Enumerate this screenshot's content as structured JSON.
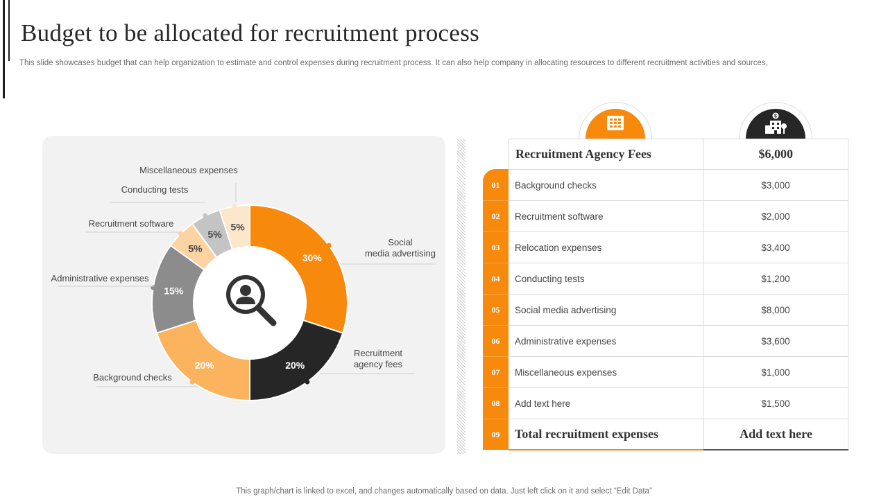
{
  "header": {
    "title": "Budget to be allocated for recruitment process",
    "subtitle": "This slide showcases budget that can help organization to estimate and control expenses during recruitment process. It can also help company in allocating resources to different recruitment activities and sources,"
  },
  "colors": {
    "accent": "#f7890c",
    "dark": "#262626",
    "light_orange": "#fbb35e",
    "peach": "#fdd3a4",
    "cream": "#fde7cc",
    "grey": "#8c8c8c",
    "light_grey": "#c4c4c4"
  },
  "chart_data": {
    "type": "pie",
    "style": "donut",
    "slices": [
      {
        "label": "Social\nmedia advertising",
        "value": 30,
        "pct_label": "30%",
        "color": "#f7890c",
        "text_color": "#ffffff"
      },
      {
        "label": "Recruitment\nagency fees",
        "value": 20,
        "pct_label": "20%",
        "color": "#262626",
        "text_color": "#ffffff"
      },
      {
        "label": "Background checks",
        "value": 20,
        "pct_label": "20%",
        "color": "#fbb35e",
        "text_color": "#ffffff"
      },
      {
        "label": "Administrative expenses",
        "value": 15,
        "pct_label": "15%",
        "color": "#8c8c8c",
        "text_color": "#ffffff"
      },
      {
        "label": "Recruitment software",
        "value": 5,
        "pct_label": "5%",
        "color": "#fdd3a4",
        "text_color": "#444444"
      },
      {
        "label": "Conducting tests",
        "value": 5,
        "pct_label": "5%",
        "color": "#c4c4c4",
        "text_color": "#444444"
      },
      {
        "label": "Miscellaneous expenses",
        "value": 5,
        "pct_label": "5%",
        "color": "#fde7cc",
        "text_color": "#444444"
      }
    ],
    "center_icon": "search-user-icon"
  },
  "table": {
    "header_name": "Recruitment Agency Fees",
    "header_value": "$6,000",
    "header_icons": [
      "building-icon",
      "office-icon"
    ],
    "rows": [
      {
        "num": "01",
        "name": "Background checks",
        "value": "$3,000"
      },
      {
        "num": "02",
        "name": "Recruitment software",
        "value": "$2,000"
      },
      {
        "num": "03",
        "name": "Relocation expenses",
        "value": "$3,400"
      },
      {
        "num": "04",
        "name": "Conducting tests",
        "value": "$1,200"
      },
      {
        "num": "05",
        "name": "Social media advertising",
        "value": "$8,000"
      },
      {
        "num": "06",
        "name": "Administrative expenses",
        "value": "$3,600"
      },
      {
        "num": "07",
        "name": "Miscellaneous expenses",
        "value": "$1,000"
      },
      {
        "num": "08",
        "name": "Add text here",
        "value": "$1,500"
      }
    ],
    "total": {
      "num": "09",
      "name": "Total recruitment expenses",
      "value": "Add text here"
    }
  },
  "footer": {
    "note": "This graph/chart is linked to excel, and changes automatically based on data. Just left click on it and select “Edit Data”"
  }
}
